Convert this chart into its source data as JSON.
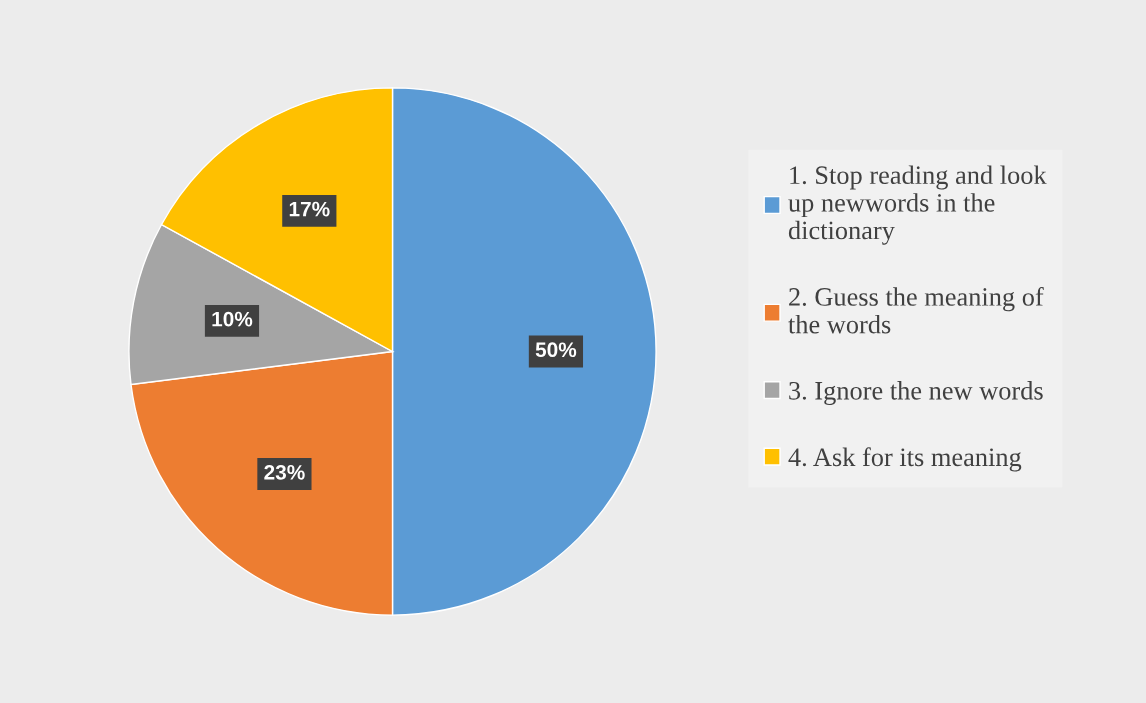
{
  "chart_data": {
    "type": "pie",
    "categories": [
      "1. Stop reading and look up newwords in the dictionary",
      "2. Guess the meaning of the words",
      "3. Ignore the new words",
      "4. Ask for its meaning"
    ],
    "values": [
      50,
      23,
      10,
      17
    ],
    "colors": [
      "#5b9bd5",
      "#ed7d31",
      "#a5a5a5",
      "#ffc000"
    ],
    "value_labels": [
      "50%",
      "23%",
      "10%",
      "17%"
    ],
    "legend": "right"
  }
}
